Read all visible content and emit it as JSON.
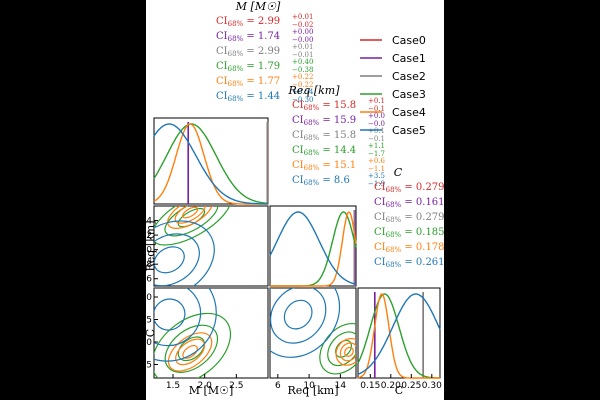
{
  "chart_data": {
    "type": "corner",
    "parameters": [
      {
        "key": "M",
        "title": "M [M☉]",
        "axis_label": "M [M☉]",
        "range": [
          1.2,
          3.0
        ],
        "ticks": [
          "1.5",
          "2.0",
          "2.5"
        ],
        "tick_values": [
          1.5,
          2.0,
          2.5
        ]
      },
      {
        "key": "Req",
        "title": "Req [km]",
        "axis_label": "Req [km]",
        "range": [
          5,
          16
        ],
        "ticks": [
          "6",
          "10",
          "14"
        ],
        "tick_values": [
          6,
          10,
          14
        ],
        "ticks_y": [
          "6",
          "8",
          "10",
          "12",
          "14"
        ],
        "tick_values_y": [
          6,
          8,
          10,
          12,
          14
        ]
      },
      {
        "key": "C",
        "title": "C",
        "axis_label": "C",
        "range": [
          0.12,
          0.32
        ],
        "ticks": [
          "0.15",
          "0.20",
          "0.25",
          "0.30"
        ],
        "tick_values": [
          0.15,
          0.2,
          0.25,
          0.3
        ]
      }
    ],
    "legend": {
      "placement": "top-right",
      "entries": [
        "Case0",
        "Case1",
        "Case2",
        "Case3",
        "Case4",
        "Case5"
      ]
    },
    "series": [
      {
        "name": "Case0",
        "color": "#d62728",
        "M": {
          "median": 2.99,
          "plus": 0.01,
          "minus": 0.02
        },
        "Req": {
          "median": 15.8,
          "plus": 0.1,
          "minus": 0.1
        },
        "C": {
          "median": 0.279,
          "plus": 0.001,
          "minus": 0.001
        }
      },
      {
        "name": "Case1",
        "color": "#7b1fa2",
        "M": {
          "median": 1.74,
          "plus": 0.0,
          "minus": 0.0
        },
        "Req": {
          "median": 15.9,
          "plus": 0.0,
          "minus": 0.0
        },
        "C": {
          "median": 0.161,
          "plus": 0.0,
          "minus": 0.0
        }
      },
      {
        "name": "Case2",
        "color": "#7f7f7f",
        "M": {
          "median": 2.99,
          "plus": 0.01,
          "minus": 0.01
        },
        "Req": {
          "median": 15.8,
          "plus": 0.1,
          "minus": 0.1
        },
        "C": {
          "median": 0.279,
          "plus": 0.001,
          "minus": 0.001
        }
      },
      {
        "name": "Case3",
        "color": "#2ca02c",
        "M": {
          "median": 1.79,
          "plus": 0.4,
          "minus": 0.38
        },
        "Req": {
          "median": 14.4,
          "plus": 1.1,
          "minus": 1.7
        },
        "C": {
          "median": 0.185,
          "plus": 0.04,
          "minus": 0.03
        }
      },
      {
        "name": "Case4",
        "color": "#ff7f0e",
        "M": {
          "median": 1.77,
          "plus": 0.22,
          "minus": 0.22
        },
        "Req": {
          "median": 15.1,
          "plus": 0.6,
          "minus": 1.1
        },
        "C": {
          "median": 0.178,
          "plus": 0.014,
          "minus": 0.021
        }
      },
      {
        "name": "Case5",
        "color": "#1f77b4",
        "M": {
          "median": 1.44,
          "plus": 0.54,
          "minus": 0.3
        },
        "Req": {
          "median": 8.6,
          "plus": 3.5,
          "minus": 1.9
        },
        "C": {
          "median": 0.261,
          "plus": 0.049,
          "minus": 0.064
        }
      }
    ],
    "ci_prefix": "CI68% = ",
    "ci_prefix_parts": {
      "ci": "CI",
      "sub": "68%",
      "eq": " = "
    },
    "grid": false
  }
}
